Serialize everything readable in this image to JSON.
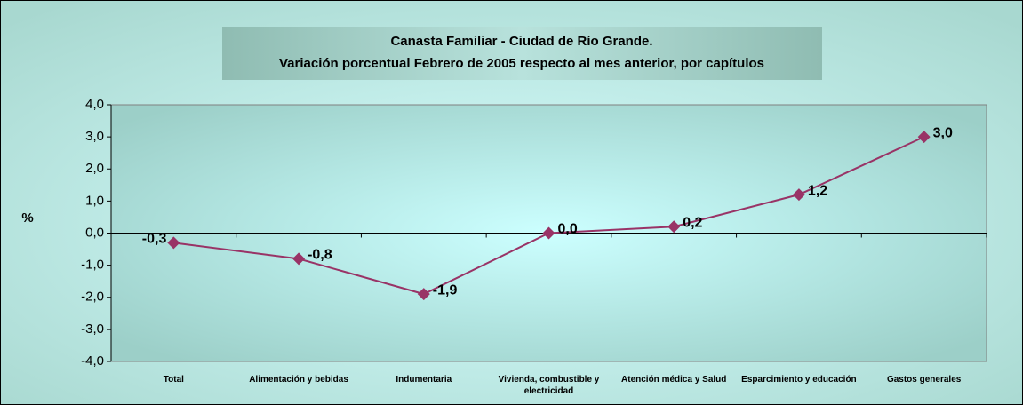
{
  "chart_data": {
    "type": "line",
    "title": "Canasta Familiar - Ciudad de Río Grande.",
    "subtitle": "Variación porcentual Febrero de 2005 respecto al mes anterior, por capítulos",
    "y_label": "%",
    "categories": [
      "Total",
      "Alimentación y bebidas",
      "Indumentaria",
      "Vivienda, combustible y electricidad",
      "Atención médica y Salud",
      "Esparcimiento y educación",
      "Gastos generales"
    ],
    "values": [
      -0.3,
      -0.8,
      -1.9,
      0.0,
      0.2,
      1.2,
      3.0
    ],
    "value_labels": [
      "-0,3",
      "-0,8",
      "-1,9",
      "0,0",
      "0,2",
      "1,2",
      "3,0"
    ],
    "color": "#993366",
    "ylim": [
      -4,
      4
    ],
    "yticks": [
      {
        "value": -4,
        "label": "-4,0"
      },
      {
        "value": -3,
        "label": "-3,0"
      },
      {
        "value": -2,
        "label": "-2,0"
      },
      {
        "value": -1,
        "label": "-1,0"
      },
      {
        "value": 0,
        "label": "0,0"
      },
      {
        "value": 1,
        "label": "1,0"
      },
      {
        "value": 2,
        "label": "2,0"
      },
      {
        "value": 3,
        "label": "3,0"
      },
      {
        "value": 4,
        "label": "4,0"
      }
    ]
  }
}
